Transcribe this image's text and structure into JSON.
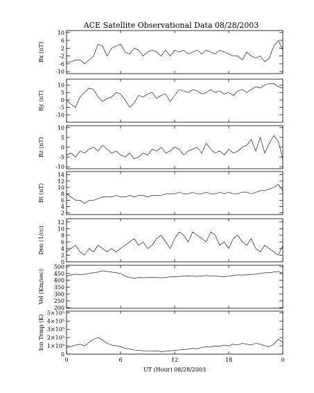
{
  "chart_data": {
    "type": "line",
    "title": "ACE Satellite Observational Data   08/28/2003",
    "xlabel": "UT (Hour)   08/28/2003",
    "x_ticks": [
      "0",
      "6",
      "12",
      "18",
      "0"
    ],
    "xlim": [
      0,
      24
    ],
    "grid": false,
    "panels": [
      {
        "name": "bx",
        "ylabel": "Bx (nT)",
        "ylim": [
          -11,
          11
        ],
        "yticks": [
          {
            "v": 10,
            "label": "10"
          },
          {
            "v": 6,
            "label": "6"
          },
          {
            "v": 2,
            "label": "2"
          },
          {
            "v": -2,
            "label": "-2"
          },
          {
            "v": -6,
            "label": "-6"
          },
          {
            "v": -10,
            "label": "-10"
          }
        ],
        "x": [
          0,
          0.5,
          1,
          1.5,
          2,
          2.5,
          3,
          3.5,
          4,
          4.5,
          5,
          5.5,
          6,
          6.5,
          7,
          7.5,
          8,
          8.5,
          9,
          9.5,
          10,
          10.5,
          11,
          11.5,
          12,
          12.5,
          13,
          13.5,
          14,
          14.5,
          15,
          15.5,
          16,
          16.5,
          17,
          17.5,
          18,
          18.5,
          19,
          19.5,
          20,
          20.5,
          21,
          21.5,
          22,
          22.5,
          23,
          23.5,
          24
        ],
        "y": [
          -5,
          -5,
          -4,
          -4,
          -6,
          -4,
          -2,
          4,
          3,
          -2,
          2,
          3,
          4,
          0,
          -1,
          2,
          1,
          -2,
          0,
          1,
          0,
          -2,
          1,
          -2,
          1,
          0,
          1,
          -1,
          0,
          1,
          -1,
          1,
          0,
          -1,
          1,
          0,
          -1,
          -2,
          -2,
          -4,
          0,
          -2,
          -3,
          -2,
          -5,
          -3,
          3,
          6,
          1
        ]
      },
      {
        "name": "by",
        "ylabel": "By (nT)",
        "ylim": [
          -15,
          14
        ],
        "yticks": [
          {
            "v": 10,
            "label": "10"
          },
          {
            "v": 5,
            "label": "5"
          },
          {
            "v": 0,
            "label": "0"
          },
          {
            "v": -5,
            "label": "-5"
          },
          {
            "v": -10,
            "label": "-10"
          }
        ],
        "x": [
          0,
          0.5,
          1,
          1.5,
          2,
          2.5,
          3,
          3.5,
          4,
          4.5,
          5,
          5.5,
          6,
          6.5,
          7,
          7.5,
          8,
          8.5,
          9,
          9.5,
          10,
          10.5,
          11,
          11.5,
          12,
          12.5,
          13,
          13.5,
          14,
          14.5,
          15,
          15.5,
          16,
          16.5,
          17,
          17.5,
          18,
          18.5,
          19,
          19.5,
          20,
          20.5,
          21,
          21.5,
          22,
          22.5,
          23,
          23.5,
          24
        ],
        "y": [
          0,
          -3,
          -5,
          2,
          5,
          8,
          7,
          2,
          -1,
          1,
          2,
          5,
          4,
          0,
          -5,
          -2,
          3,
          2,
          4,
          5,
          1,
          3,
          4,
          -1,
          3,
          7,
          6,
          5,
          7,
          6,
          4,
          5,
          7,
          5,
          6,
          4,
          5,
          3,
          6,
          7,
          5,
          7,
          9,
          8,
          10,
          11,
          11,
          9,
          8
        ]
      },
      {
        "name": "bz",
        "ylabel": "Bz (nT)",
        "ylim": [
          -11,
          11
        ],
        "yticks": [
          {
            "v": 10,
            "label": "10"
          },
          {
            "v": 5,
            "label": "5"
          },
          {
            "v": 0,
            "label": "0"
          },
          {
            "v": -5,
            "label": "-5"
          },
          {
            "v": -10,
            "label": "-10"
          }
        ],
        "x": [
          0,
          0.5,
          1,
          1.5,
          2,
          2.5,
          3,
          3.5,
          4,
          4.5,
          5,
          5.5,
          6,
          6.5,
          7,
          7.5,
          8,
          8.5,
          9,
          9.5,
          10,
          10.5,
          11,
          11.5,
          12,
          12.5,
          13,
          13.5,
          14,
          14.5,
          15,
          15.5,
          16,
          16.5,
          17,
          17.5,
          18,
          18.5,
          19,
          19.5,
          20,
          20.5,
          21,
          21.5,
          22,
          22.5,
          23,
          23.5,
          24
        ],
        "y": [
          -4,
          -3,
          -5,
          -2,
          -3,
          -1,
          0,
          -2,
          1,
          -1,
          -3,
          -2,
          -4,
          -5,
          -3,
          -6,
          -5,
          -3,
          -4,
          -1,
          -2,
          0,
          -3,
          -2,
          0,
          -1,
          -4,
          -2,
          -1,
          0,
          -3,
          2,
          -1,
          -3,
          -2,
          -4,
          -1,
          -3,
          -2,
          0,
          1,
          4,
          -2,
          5,
          -3,
          2,
          6,
          3,
          -6
        ]
      },
      {
        "name": "bt",
        "ylabel": "Bt (nT)",
        "ylim": [
          1.5,
          15
        ],
        "yticks": [
          {
            "v": 14,
            "label": "14"
          },
          {
            "v": 12,
            "label": "12"
          },
          {
            "v": 10,
            "label": "10"
          },
          {
            "v": 8,
            "label": "8"
          },
          {
            "v": 6,
            "label": "6"
          },
          {
            "v": 4,
            "label": "4"
          },
          {
            "v": 2,
            "label": "2"
          }
        ],
        "x": [
          0,
          0.5,
          1,
          1.5,
          2,
          2.5,
          3,
          3.5,
          4,
          4.5,
          5,
          5.5,
          6,
          6.5,
          7,
          7.5,
          8,
          8.5,
          9,
          9.5,
          10,
          10.5,
          11,
          11.5,
          12,
          12.5,
          13,
          13.5,
          14,
          14.5,
          15,
          15.5,
          16,
          16.5,
          17,
          17.5,
          18,
          18.5,
          19,
          19.5,
          20,
          20.5,
          21,
          21.5,
          22,
          22.5,
          23,
          23.5,
          24
        ],
        "y": [
          8,
          7,
          6,
          6,
          5,
          6,
          6,
          6.5,
          7,
          7,
          7,
          7.5,
          7,
          7,
          7.5,
          7,
          7.5,
          7.5,
          7,
          7.5,
          7.5,
          7.5,
          8,
          8,
          8,
          8.5,
          8,
          8,
          8.5,
          8,
          8,
          8.5,
          8,
          8,
          8.5,
          8,
          8.5,
          8,
          8,
          8.5,
          8.5,
          8,
          8.5,
          9,
          9,
          9.5,
          10,
          11,
          9
        ]
      },
      {
        "name": "den",
        "ylabel": "Den (1/cc)",
        "ylim": [
          0,
          13
        ],
        "yticks": [
          {
            "v": 12,
            "label": "12"
          },
          {
            "v": 10,
            "label": "10"
          },
          {
            "v": 8,
            "label": "8"
          },
          {
            "v": 6,
            "label": "6"
          },
          {
            "v": 4,
            "label": "4"
          },
          {
            "v": 2,
            "label": "2"
          },
          {
            "v": 0,
            "label": "0"
          }
        ],
        "x": [
          0,
          0.5,
          1,
          1.5,
          2,
          2.5,
          3,
          3.5,
          4,
          4.5,
          5,
          5.5,
          6,
          6.5,
          7,
          7.5,
          8,
          8.5,
          9,
          9.5,
          10,
          10.5,
          11,
          11.5,
          12,
          12.5,
          13,
          13.5,
          14,
          14.5,
          15,
          15.5,
          16,
          16.5,
          17,
          17.5,
          18,
          18.5,
          19,
          19.5,
          20,
          20.5,
          21,
          21.5,
          22,
          22.5,
          23,
          23.5,
          24
        ],
        "y": [
          3,
          4,
          5,
          3,
          2,
          4,
          3,
          5,
          4,
          3,
          4,
          3,
          4,
          5,
          6,
          7,
          5,
          6,
          4,
          5,
          7,
          8,
          6,
          4,
          7,
          9,
          8,
          6,
          9,
          8,
          7,
          6,
          9,
          8,
          5,
          6,
          4,
          7,
          8,
          6,
          5,
          7,
          4,
          3,
          5,
          4,
          3,
          2,
          5
        ]
      },
      {
        "name": "vel",
        "ylabel": "Vel (Km/sec)",
        "ylim": [
          195,
          510
        ],
        "yticks": [
          {
            "v": 500,
            "label": "500"
          },
          {
            "v": 450,
            "label": "450"
          },
          {
            "v": 400,
            "label": "400"
          },
          {
            "v": 350,
            "label": "350"
          },
          {
            "v": 300,
            "label": "300"
          },
          {
            "v": 250,
            "label": "250"
          },
          {
            "v": 200,
            "label": "200"
          }
        ],
        "x": [
          0,
          0.5,
          1,
          1.5,
          2,
          2.5,
          3,
          3.5,
          4,
          4.5,
          5,
          5.5,
          6,
          6.5,
          7,
          7.5,
          8,
          8.5,
          9,
          9.5,
          10,
          10.5,
          11,
          11.5,
          12,
          12.5,
          13,
          13.5,
          14,
          14.5,
          15,
          15.5,
          16,
          16.5,
          17,
          17.5,
          18,
          18.5,
          19,
          19.5,
          20,
          20.5,
          21,
          21.5,
          22,
          22.5,
          23,
          23.5,
          24
        ],
        "y": [
          430,
          440,
          445,
          440,
          445,
          450,
          455,
          460,
          470,
          465,
          460,
          455,
          450,
          430,
          420,
          415,
          420,
          418,
          420,
          422,
          420,
          418,
          420,
          425,
          425,
          428,
          430,
          432,
          430,
          428,
          432,
          435,
          432,
          430,
          428,
          425,
          430,
          435,
          440,
          438,
          440,
          442,
          445,
          450,
          455,
          455,
          460,
          465,
          450
        ]
      },
      {
        "name": "temp",
        "ylabel": "Ion Temp (K)",
        "ylim": [
          0,
          520000
        ],
        "yticks": [
          {
            "v": 500000,
            "label": "5×10⁵"
          },
          {
            "v": 400000,
            "label": "4×10⁵"
          },
          {
            "v": 300000,
            "label": "3×10⁵"
          },
          {
            "v": 200000,
            "label": "2×10⁵"
          },
          {
            "v": 100000,
            "label": "1×10⁵"
          },
          {
            "v": 0,
            "label": "0"
          }
        ],
        "x": [
          0,
          0.5,
          1,
          1.5,
          2,
          2.5,
          3,
          3.5,
          4,
          4.5,
          5,
          5.5,
          6,
          6.5,
          7,
          7.5,
          8,
          8.5,
          9,
          9.5,
          10,
          10.5,
          11,
          11.5,
          12,
          12.5,
          13,
          13.5,
          14,
          14.5,
          15,
          15.5,
          16,
          16.5,
          17,
          17.5,
          18,
          18.5,
          19,
          19.5,
          20,
          20.5,
          21,
          21.5,
          22,
          22.5,
          23,
          23.5,
          24
        ],
        "y": [
          80000,
          90000,
          110000,
          120000,
          100000,
          140000,
          180000,
          200000,
          170000,
          130000,
          110000,
          100000,
          90000,
          70000,
          60000,
          50000,
          45000,
          40000,
          38000,
          35000,
          40000,
          30000,
          35000,
          40000,
          45000,
          50000,
          55000,
          60000,
          70000,
          65000,
          80000,
          90000,
          85000,
          100000,
          95000,
          110000,
          100000,
          120000,
          110000,
          130000,
          120000,
          110000,
          130000,
          120000,
          100000,
          90000,
          120000,
          180000,
          140000
        ]
      }
    ]
  }
}
